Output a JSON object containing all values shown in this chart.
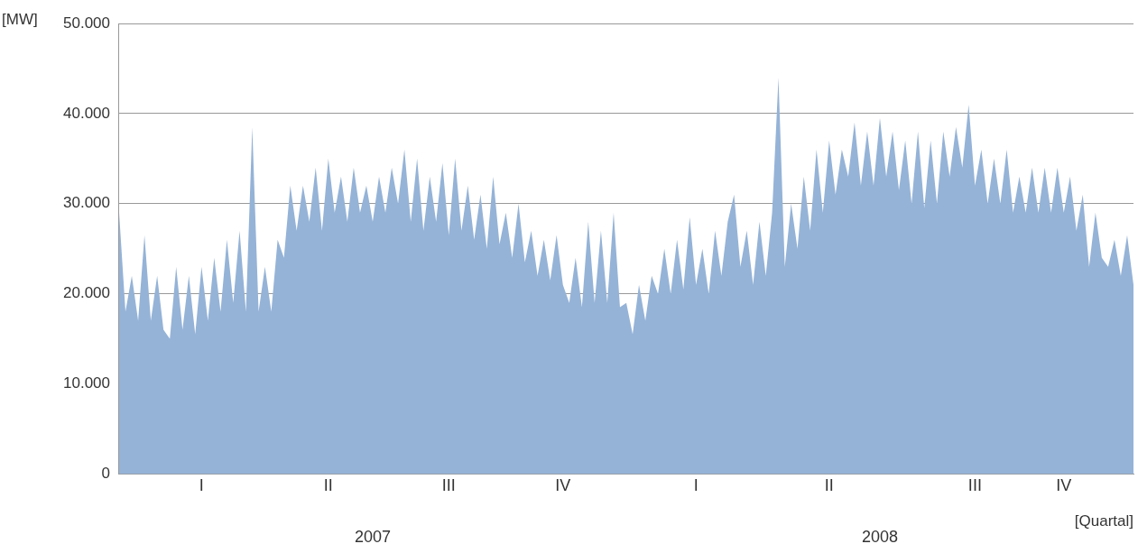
{
  "chart_data": {
    "type": "area",
    "ylabel": "[MW]",
    "xlabel": "[Quartal]",
    "annotations": [
      "2007",
      "2008"
    ],
    "categories": [
      null,
      null,
      null,
      null,
      null,
      null,
      null,
      null,
      null,
      null,
      null,
      null,
      null,
      "I",
      null,
      null,
      null,
      null,
      null,
      null,
      null,
      null,
      null,
      null,
      null,
      null,
      null,
      null,
      null,
      null,
      null,
      null,
      null,
      "II",
      null,
      null,
      null,
      null,
      null,
      null,
      null,
      null,
      null,
      null,
      null,
      null,
      null,
      null,
      null,
      null,
      null,
      null,
      "III",
      null,
      null,
      null,
      null,
      null,
      null,
      null,
      null,
      null,
      null,
      null,
      null,
      null,
      null,
      null,
      null,
      null,
      "IV",
      null,
      null,
      null,
      null,
      null,
      null,
      null,
      null,
      null,
      null,
      null,
      null,
      null,
      null,
      null,
      null,
      null,
      null,
      null,
      null,
      "I",
      null,
      null,
      null,
      null,
      null,
      null,
      null,
      null,
      null,
      null,
      null,
      null,
      null,
      null,
      null,
      null,
      null,
      null,
      null,
      null,
      "II",
      null,
      null,
      null,
      null,
      null,
      null,
      null,
      null,
      null,
      null,
      null,
      null,
      null,
      null,
      null,
      null,
      null,
      null,
      null,
      null,
      null,
      null,
      "III",
      null,
      null,
      null,
      null,
      null,
      null,
      null,
      null,
      null,
      null,
      null,
      null,
      null,
      "IV",
      null,
      null,
      null,
      null,
      null,
      null,
      null,
      null,
      null,
      null,
      null
    ],
    "ylim": [
      0,
      50000
    ],
    "yticks": [
      {
        "value": 0,
        "label": "0"
      },
      {
        "value": 10000,
        "label": "10.000"
      },
      {
        "value": 20000,
        "label": "20.000"
      },
      {
        "value": 30000,
        "label": "30.000"
      },
      {
        "value": 40000,
        "label": "40.000"
      },
      {
        "value": 50000,
        "label": "50.000"
      }
    ],
    "grid": "y",
    "marker": "none",
    "series": [
      {
        "color": "#95b3d7",
        "values": [
          29000,
          18000,
          22000,
          17000,
          26500,
          17000,
          22000,
          16000,
          15000,
          23000,
          16000,
          22000,
          15500,
          23000,
          17000,
          24000,
          18000,
          26000,
          19000,
          27000,
          18000,
          38500,
          18000,
          23000,
          18000,
          26000,
          24000,
          32000,
          27000,
          32000,
          28000,
          34000,
          27000,
          35000,
          29000,
          33000,
          28000,
          34000,
          29000,
          32000,
          28000,
          33000,
          29000,
          34000,
          30000,
          36000,
          28000,
          35000,
          27000,
          33000,
          28000,
          34500,
          26500,
          35000,
          27000,
          32000,
          26000,
          31000,
          25000,
          33000,
          25500,
          29000,
          24000,
          30000,
          23500,
          27000,
          22000,
          26000,
          21500,
          26500,
          21000,
          19000,
          24000,
          18500,
          28000,
          19000,
          27000,
          19000,
          29000,
          18500,
          19000,
          15500,
          21000,
          17000,
          22000,
          20000,
          25000,
          20000,
          26000,
          20500,
          28500,
          21000,
          25000,
          20000,
          27000,
          22000,
          28000,
          31000,
          23000,
          27000,
          21000,
          28000,
          22000,
          29000,
          44000,
          23000,
          30000,
          25000,
          33000,
          27000,
          36000,
          29000,
          37000,
          31000,
          36000,
          33000,
          39000,
          32000,
          38000,
          32000,
          39500,
          33000,
          38000,
          31500,
          37000,
          30000,
          38000,
          29500,
          37000,
          30000,
          38000,
          33000,
          38500,
          34000,
          41000,
          32000,
          36000,
          30000,
          35000,
          30000,
          36000,
          29000,
          33000,
          29000,
          34000,
          29000,
          34000,
          29000,
          34000,
          29000,
          33000,
          27000,
          31000,
          23000,
          29000,
          24000,
          23000,
          26000,
          22000,
          26500,
          21000
        ]
      }
    ]
  }
}
